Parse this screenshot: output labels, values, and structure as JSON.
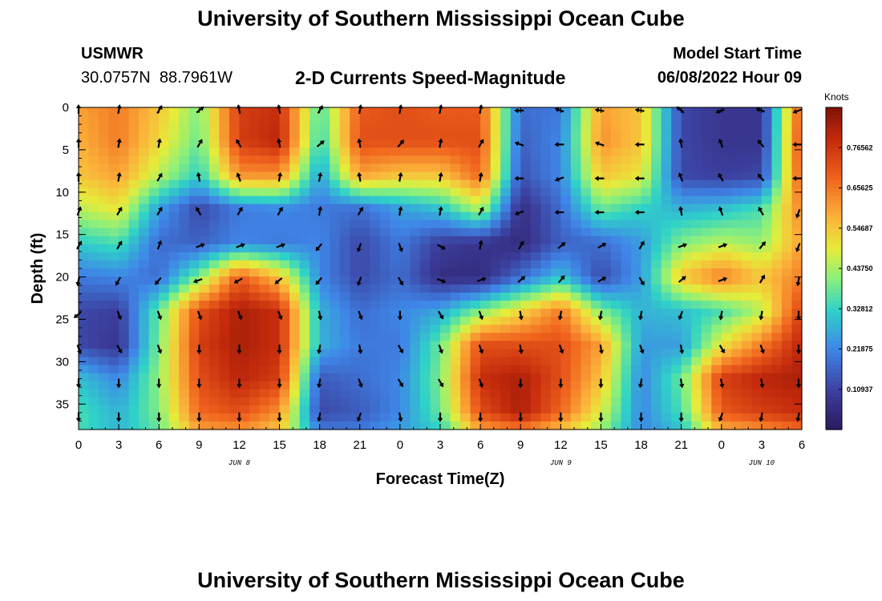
{
  "page": {
    "title": "University of Southern Mississippi Ocean Cube",
    "station_id": "USMWR",
    "coordinates": "30.0757N  88.7961W",
    "subtitle": "2-D Currents Speed-Magnitude",
    "model_start_label": "Model Start Time",
    "model_start_value": "06/08/2022 Hour 09",
    "second_title": "University of Southern Mississippi Ocean Cube"
  },
  "chart_data": {
    "type": "heatmap",
    "title": "2-D Currents Speed-Magnitude",
    "xlabel": "Forecast Time(Z)",
    "ylabel": "Depth (ft)",
    "x_tick_labels": [
      "0",
      "3",
      "6",
      "9",
      "12",
      "15",
      "18",
      "21",
      "0",
      "3",
      "6",
      "9",
      "12",
      "15",
      "18",
      "21",
      "0",
      "3",
      "6"
    ],
    "x_hours": [
      0,
      3,
      6,
      9,
      12,
      15,
      18,
      21,
      24,
      27,
      30,
      33,
      36,
      39,
      42,
      45,
      48,
      51,
      54
    ],
    "date_labels": [
      {
        "label": "JUN 8",
        "hour": 12
      },
      {
        "label": "JUN 9",
        "hour": 36
      },
      {
        "label": "JUN 10",
        "hour": 51
      }
    ],
    "y_ticks": [
      0,
      5,
      10,
      15,
      20,
      25,
      30,
      35
    ],
    "ylim": [
      0,
      38
    ],
    "xlim": [
      0,
      54
    ],
    "y_inverted": true,
    "colorbar": {
      "title": "Knots",
      "ticks": [
        "0.76562",
        "0.65625",
        "0.54687",
        "0.43750",
        "0.32812",
        "0.21875",
        "0.10937"
      ],
      "range": [
        0.0,
        0.875
      ]
    },
    "speed_grid": {
      "x": [
        0,
        3,
        6,
        9,
        12,
        15,
        18,
        21,
        24,
        27,
        30,
        33,
        36,
        39,
        42,
        45,
        48,
        51,
        54
      ],
      "depth": [
        0,
        4,
        8,
        12,
        16,
        20,
        24,
        28,
        32,
        36,
        38
      ],
      "values": [
        [
          0.6,
          0.65,
          0.55,
          0.4,
          0.75,
          0.78,
          0.35,
          0.7,
          0.72,
          0.7,
          0.7,
          0.18,
          0.2,
          0.6,
          0.55,
          0.12,
          0.08,
          0.08,
          0.72
        ],
        [
          0.58,
          0.65,
          0.52,
          0.38,
          0.75,
          0.8,
          0.32,
          0.72,
          0.72,
          0.72,
          0.72,
          0.16,
          0.22,
          0.62,
          0.55,
          0.12,
          0.08,
          0.08,
          0.75
        ],
        [
          0.55,
          0.6,
          0.45,
          0.32,
          0.62,
          0.62,
          0.25,
          0.6,
          0.55,
          0.55,
          0.68,
          0.14,
          0.22,
          0.55,
          0.5,
          0.12,
          0.1,
          0.12,
          0.72
        ],
        [
          0.45,
          0.5,
          0.25,
          0.12,
          0.2,
          0.22,
          0.2,
          0.18,
          0.25,
          0.3,
          0.45,
          0.06,
          0.18,
          0.38,
          0.32,
          0.28,
          0.3,
          0.35,
          0.65
        ],
        [
          0.32,
          0.35,
          0.18,
          0.16,
          0.22,
          0.2,
          0.22,
          0.12,
          0.2,
          0.1,
          0.08,
          0.05,
          0.16,
          0.18,
          0.25,
          0.4,
          0.45,
          0.42,
          0.6
        ],
        [
          0.2,
          0.22,
          0.18,
          0.4,
          0.7,
          0.55,
          0.22,
          0.12,
          0.18,
          0.06,
          0.05,
          0.18,
          0.3,
          0.12,
          0.25,
          0.55,
          0.65,
          0.55,
          0.65
        ],
        [
          0.12,
          0.1,
          0.38,
          0.72,
          0.82,
          0.78,
          0.28,
          0.18,
          0.22,
          0.26,
          0.4,
          0.52,
          0.65,
          0.4,
          0.28,
          0.3,
          0.35,
          0.45,
          0.75
        ],
        [
          0.12,
          0.08,
          0.4,
          0.75,
          0.82,
          0.78,
          0.28,
          0.2,
          0.2,
          0.38,
          0.72,
          0.72,
          0.72,
          0.6,
          0.25,
          0.25,
          0.5,
          0.65,
          0.8
        ],
        [
          0.3,
          0.22,
          0.42,
          0.72,
          0.8,
          0.75,
          0.15,
          0.18,
          0.22,
          0.4,
          0.78,
          0.82,
          0.72,
          0.55,
          0.22,
          0.38,
          0.75,
          0.8,
          0.82
        ],
        [
          0.35,
          0.28,
          0.4,
          0.68,
          0.72,
          0.62,
          0.12,
          0.15,
          0.22,
          0.38,
          0.72,
          0.82,
          0.68,
          0.48,
          0.22,
          0.35,
          0.7,
          0.75,
          0.78
        ],
        [
          0.35,
          0.28,
          0.38,
          0.6,
          0.62,
          0.55,
          0.2,
          0.2,
          0.25,
          0.32,
          0.6,
          0.65,
          0.55,
          0.42,
          0.22,
          0.3,
          0.58,
          0.62,
          0.68
        ]
      ]
    },
    "vector_field": {
      "x": [
        0,
        3,
        6,
        9,
        12,
        15,
        18,
        21,
        24,
        27,
        30,
        33,
        36,
        39,
        42,
        45,
        48,
        51,
        54
      ],
      "depth": [
        0,
        4,
        8,
        12,
        16,
        20,
        24,
        28,
        32,
        36
      ],
      "angles_deg": [
        [
          90,
          80,
          60,
          40,
          100,
          100,
          60,
          80,
          80,
          80,
          80,
          180,
          160,
          170,
          170,
          140,
          200,
          160,
          200
        ],
        [
          90,
          80,
          80,
          60,
          120,
          100,
          40,
          100,
          50,
          80,
          60,
          160,
          180,
          160,
          180,
          100,
          110,
          130,
          180
        ],
        [
          90,
          80,
          60,
          100,
          110,
          80,
          80,
          100,
          80,
          80,
          80,
          180,
          200,
          180,
          180,
          110,
          120,
          130,
          180
        ],
        [
          70,
          60,
          60,
          120,
          60,
          60,
          80,
          60,
          80,
          80,
          60,
          200,
          180,
          180,
          180,
          100,
          110,
          120,
          250
        ],
        [
          60,
          60,
          70,
          20,
          20,
          20,
          230,
          250,
          290,
          330,
          80,
          60,
          40,
          30,
          60,
          20,
          20,
          50,
          250
        ],
        [
          260,
          240,
          230,
          200,
          210,
          220,
          230,
          250,
          300,
          340,
          20,
          40,
          50,
          30,
          300,
          40,
          20,
          60,
          260
        ],
        [
          220,
          290,
          290,
          290,
          290,
          290,
          280,
          290,
          270,
          300,
          290,
          280,
          260,
          260,
          260,
          250,
          260,
          260,
          270
        ],
        [
          290,
          300,
          290,
          270,
          270,
          270,
          260,
          280,
          300,
          290,
          290,
          280,
          290,
          280,
          290,
          280,
          300,
          290,
          270
        ],
        [
          270,
          270,
          270,
          270,
          270,
          270,
          260,
          290,
          300,
          300,
          290,
          270,
          270,
          270,
          260,
          280,
          280,
          280,
          270
        ],
        [
          270,
          270,
          270,
          270,
          270,
          270,
          260,
          250,
          280,
          270,
          270,
          270,
          270,
          270,
          270,
          270,
          250,
          260,
          260
        ]
      ]
    }
  }
}
